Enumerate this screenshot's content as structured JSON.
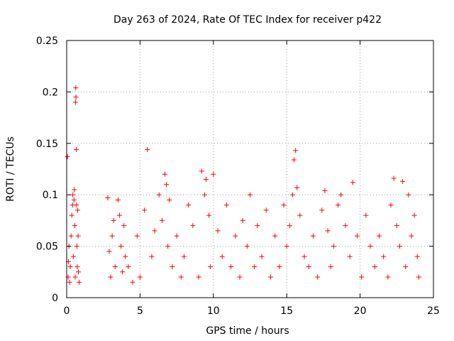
{
  "chart_data": {
    "type": "scatter",
    "title": "Day 263 of 2024, Rate Of TEC Index for receiver p422",
    "xlabel": "GPS time / hours",
    "ylabel": "ROTI / TECUs",
    "xlim": [
      0,
      25
    ],
    "ylim": [
      0,
      0.25
    ],
    "xticks": [
      0,
      5,
      10,
      15,
      20,
      25
    ],
    "xtick_labels": [
      "0",
      "5",
      "10",
      "15",
      "20",
      "25"
    ],
    "yticks": [
      0,
      0.05,
      0.1,
      0.15,
      0.2,
      0.25
    ],
    "ytick_labels": [
      "0",
      "0.05",
      "0.1",
      "0.15",
      "0.2",
      "0.25"
    ],
    "grid": true,
    "marker": "+",
    "series_color": "#ff0000",
    "series": [
      {
        "name": "ROTI",
        "x": [
          0.05,
          0.1,
          0.12,
          0.15,
          0.2,
          0.25,
          0.3,
          0.35,
          0.4,
          0.42,
          0.45,
          0.5,
          0.52,
          0.55,
          0.58,
          0.6,
          0.62,
          0.63,
          0.65,
          0.67,
          0.7,
          0.72,
          0.75,
          0.78,
          0.8,
          0.85,
          2.8,
          2.9,
          3.0,
          3.1,
          3.2,
          3.3,
          3.5,
          3.6,
          3.7,
          3.8,
          3.9,
          4.0,
          4.2,
          4.5,
          4.8,
          5.0,
          5.3,
          5.5,
          5.8,
          6.0,
          6.3,
          6.5,
          6.7,
          6.8,
          6.9,
          7.0,
          7.2,
          7.5,
          7.8,
          8.0,
          8.3,
          8.6,
          9.0,
          9.2,
          9.4,
          9.5,
          9.7,
          9.8,
          10.0,
          10.3,
          10.6,
          10.9,
          11.2,
          11.5,
          11.8,
          12.0,
          12.3,
          12.5,
          12.8,
          13.0,
          13.3,
          13.6,
          13.9,
          14.2,
          14.5,
          14.8,
          15.0,
          15.2,
          15.4,
          15.5,
          15.6,
          15.7,
          15.9,
          16.2,
          16.5,
          16.8,
          17.1,
          17.4,
          17.6,
          17.8,
          18.0,
          18.2,
          18.5,
          18.7,
          19.0,
          19.3,
          19.5,
          19.8,
          20.1,
          20.4,
          20.7,
          21.0,
          21.3,
          21.6,
          21.9,
          22.1,
          22.3,
          22.5,
          22.7,
          22.9,
          23.1,
          23.3,
          23.5,
          23.7,
          23.9,
          24.0
        ],
        "y": [
          0.137,
          0.02,
          0.035,
          0.05,
          0.015,
          0.03,
          0.06,
          0.08,
          0.09,
          0.1,
          0.04,
          0.095,
          0.105,
          0.07,
          0.02,
          0.19,
          0.204,
          0.195,
          0.144,
          0.09,
          0.05,
          0.03,
          0.085,
          0.06,
          0.025,
          0.015,
          0.097,
          0.045,
          0.02,
          0.06,
          0.075,
          0.03,
          0.095,
          0.08,
          0.05,
          0.025,
          0.07,
          0.04,
          0.03,
          0.015,
          0.06,
          0.02,
          0.085,
          0.144,
          0.04,
          0.065,
          0.1,
          0.075,
          0.12,
          0.11,
          0.05,
          0.095,
          0.03,
          0.06,
          0.02,
          0.04,
          0.09,
          0.07,
          0.02,
          0.123,
          0.1,
          0.115,
          0.08,
          0.03,
          0.12,
          0.065,
          0.04,
          0.09,
          0.03,
          0.06,
          0.02,
          0.075,
          0.05,
          0.1,
          0.03,
          0.07,
          0.04,
          0.085,
          0.02,
          0.06,
          0.03,
          0.09,
          0.05,
          0.07,
          0.1,
          0.134,
          0.143,
          0.107,
          0.08,
          0.04,
          0.03,
          0.06,
          0.02,
          0.085,
          0.104,
          0.065,
          0.03,
          0.05,
          0.09,
          0.1,
          0.07,
          0.04,
          0.112,
          0.06,
          0.02,
          0.08,
          0.05,
          0.03,
          0.06,
          0.04,
          0.02,
          0.09,
          0.116,
          0.07,
          0.05,
          0.113,
          0.03,
          0.1,
          0.06,
          0.08,
          0.04,
          0.02
        ]
      }
    ]
  }
}
